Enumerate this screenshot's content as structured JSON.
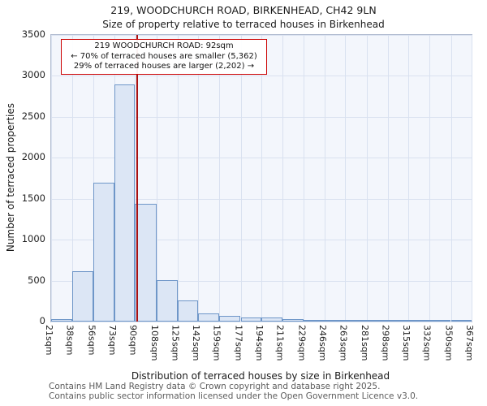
{
  "title": "219, WOODCHURCH ROAD, BIRKENHEAD, CH42 9LN",
  "subtitle": "Size of property relative to terraced houses in Birkenhead",
  "annotation": {
    "line1": "219 WOODCHURCH ROAD: 92sqm",
    "line2": "← 70% of terraced houses are smaller (5,362)",
    "line3": "29% of terraced houses are larger (2,202) →"
  },
  "footer": {
    "line1": "Contains HM Land Registry data © Crown copyright and database right 2025.",
    "line2": "Contains public sector information licensed under the Open Government Licence v3.0."
  },
  "chart_data": {
    "type": "bar",
    "title": "219, WOODCHURCH ROAD, BIRKENHEAD, CH42 9LN",
    "subtitle": "Size of property relative to terraced houses in Birkenhead",
    "xlabel": "Distribution of terraced houses by size in Birkenhead",
    "ylabel": "Number of terraced properties",
    "bin_edges_sqm": [
      21,
      38,
      56,
      73,
      90,
      108,
      125,
      142,
      159,
      177,
      194,
      211,
      229,
      246,
      263,
      281,
      298,
      315,
      332,
      350,
      367
    ],
    "x_tick_labels": [
      "21sqm",
      "38sqm",
      "56sqm",
      "73sqm",
      "90sqm",
      "108sqm",
      "125sqm",
      "142sqm",
      "159sqm",
      "177sqm",
      "194sqm",
      "211sqm",
      "229sqm",
      "246sqm",
      "263sqm",
      "281sqm",
      "298sqm",
      "315sqm",
      "332sqm",
      "350sqm",
      "367sqm"
    ],
    "values": [
      30,
      620,
      1700,
      2900,
      1440,
      510,
      260,
      100,
      65,
      50,
      55,
      35,
      25,
      15,
      10,
      8,
      5,
      3,
      2,
      2
    ],
    "y_ticks": [
      0,
      500,
      1000,
      1500,
      2000,
      2500,
      3000,
      3500
    ],
    "ylim": [
      0,
      3500
    ],
    "xlim": [
      21,
      367
    ],
    "marker_value_sqm": 92,
    "grid": true,
    "legend": "none",
    "colors": {
      "bar_fill": "#dce6f5",
      "bar_border": "#6e96c8",
      "marker_line": "#aa1111",
      "annotation_border": "#cc0000",
      "plot_bg": "#f3f6fc",
      "gridline": "#d9e1f0"
    }
  }
}
